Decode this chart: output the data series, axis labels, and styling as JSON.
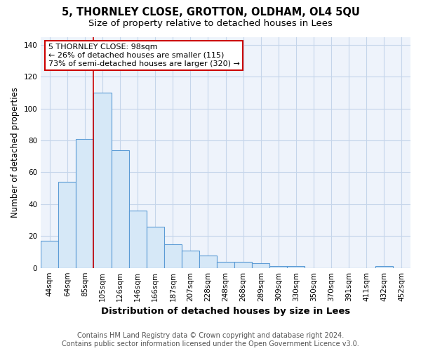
{
  "title": "5, THORNLEY CLOSE, GROTTON, OLDHAM, OL4 5QU",
  "subtitle": "Size of property relative to detached houses in Lees",
  "xlabel": "Distribution of detached houses by size in Lees",
  "ylabel": "Number of detached properties",
  "footnote1": "Contains HM Land Registry data © Crown copyright and database right 2024.",
  "footnote2": "Contains public sector information licensed under the Open Government Licence v3.0.",
  "categories": [
    "44sqm",
    "64sqm",
    "85sqm",
    "105sqm",
    "126sqm",
    "146sqm",
    "166sqm",
    "187sqm",
    "207sqm",
    "228sqm",
    "248sqm",
    "268sqm",
    "289sqm",
    "309sqm",
    "330sqm",
    "350sqm",
    "370sqm",
    "391sqm",
    "411sqm",
    "432sqm",
    "452sqm"
  ],
  "values": [
    17,
    54,
    81,
    110,
    74,
    36,
    26,
    15,
    11,
    8,
    4,
    4,
    3,
    1,
    1,
    0,
    0,
    0,
    0,
    1,
    0
  ],
  "bar_color": "#d6e8f7",
  "bar_edge_color": "#5b9bd5",
  "bar_edge_width": 0.8,
  "vline_color": "#cc0000",
  "vline_x_index": 3,
  "annotation_text": "5 THORNLEY CLOSE: 98sqm\n← 26% of detached houses are smaller (115)\n73% of semi-detached houses are larger (320) →",
  "annotation_box_color": "white",
  "annotation_box_edge_color": "#cc0000",
  "ylim": [
    0,
    145
  ],
  "yticks": [
    0,
    20,
    40,
    60,
    80,
    100,
    120,
    140
  ],
  "bg_color": "#ffffff",
  "plot_bg_color": "#eef3fb",
  "grid_color": "#c5d5ea",
  "title_fontsize": 10.5,
  "subtitle_fontsize": 9.5,
  "xlabel_fontsize": 9.5,
  "ylabel_fontsize": 8.5,
  "tick_fontsize": 7.5,
  "annotation_fontsize": 8,
  "footnote_fontsize": 7
}
